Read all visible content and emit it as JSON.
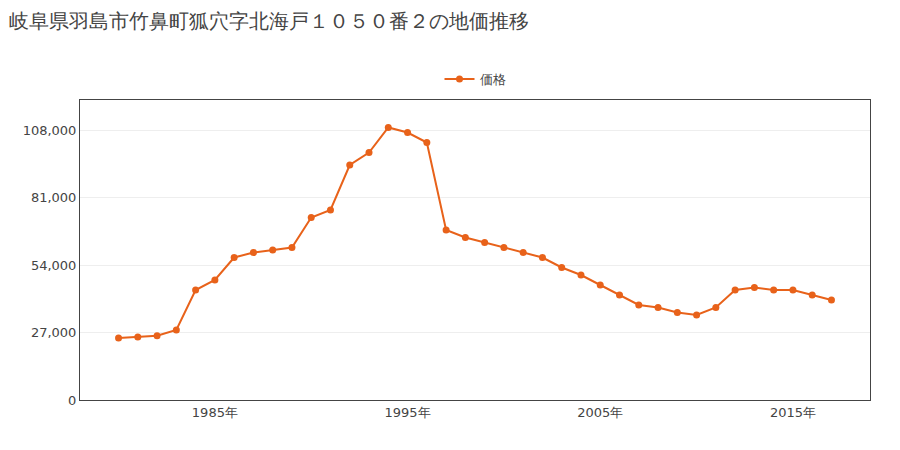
{
  "chart_data": {
    "type": "line",
    "title": "岐阜県羽島市竹鼻町狐穴字北海戸１０５０番２の地価推移",
    "x": [
      1980,
      1981,
      1982,
      1983,
      1984,
      1985,
      1986,
      1987,
      1988,
      1989,
      1990,
      1991,
      1992,
      1993,
      1994,
      1995,
      1996,
      1997,
      1998,
      1999,
      2000,
      2001,
      2002,
      2003,
      2004,
      2005,
      2006,
      2007,
      2008,
      2009,
      2010,
      2011,
      2012,
      2013,
      2014,
      2015,
      2016,
      2017
    ],
    "series": [
      {
        "name": "価格",
        "color": "#e8621a",
        "marker": "circle",
        "line_style": "solid",
        "values": [
          24800,
          25200,
          25700,
          28000,
          44000,
          48000,
          57000,
          59000,
          60000,
          61000,
          73000,
          76000,
          94000,
          99000,
          109000,
          107000,
          103000,
          68000,
          65000,
          63000,
          61000,
          59000,
          57000,
          53000,
          50000,
          46000,
          42000,
          38000,
          37000,
          35000,
          34000,
          37000,
          44000,
          45000,
          44000,
          44000,
          42000,
          40000
        ]
      }
    ],
    "xlim": [
      1978,
      2019
    ],
    "xticks": [
      {
        "value": 1985,
        "label": "1985年"
      },
      {
        "value": 1995,
        "label": "1995年"
      },
      {
        "value": 2005,
        "label": "2005年"
      },
      {
        "value": 2015,
        "label": "2015年"
      }
    ],
    "ylim": [
      0,
      120000
    ],
    "yticks": [
      0,
      {
        "value": 27000,
        "label": "27,000"
      },
      {
        "value": 54000,
        "label": "54,000"
      },
      {
        "value": 81000,
        "label": "81,000"
      },
      {
        "value": 108000,
        "label": "108,000"
      }
    ],
    "grid": true,
    "legend": "top"
  }
}
